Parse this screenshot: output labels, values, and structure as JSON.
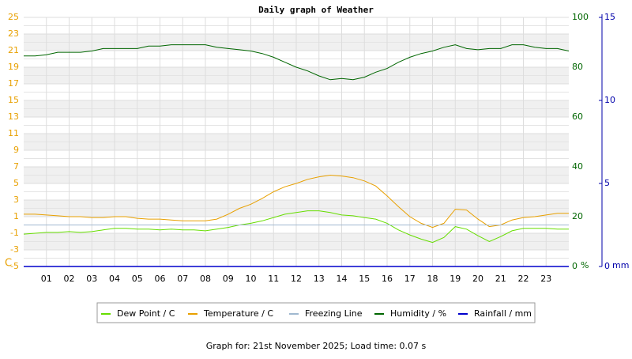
{
  "chart_data": {
    "type": "line",
    "title": "Daily graph of Weather",
    "footer": "Graph for: 21st November 2025; Load time: 0.07 s",
    "y_unit": "C",
    "y2_unit": "%",
    "y3_unit": "mm",
    "x": [
      0,
      0.5,
      1,
      1.5,
      2,
      2.5,
      3,
      3.5,
      4,
      4.5,
      5,
      5.5,
      6,
      6.5,
      7,
      7.5,
      8,
      8.5,
      9,
      9.5,
      10,
      10.5,
      11,
      11.5,
      12,
      12.5,
      13,
      13.5,
      14,
      14.5,
      15,
      15.5,
      16,
      16.5,
      17,
      17.5,
      18,
      18.5,
      19,
      19.5,
      20,
      20.5,
      21,
      21.5,
      22,
      22.5,
      23,
      23.5,
      24
    ],
    "xlim": [
      0,
      24
    ],
    "xticks": [
      {
        "value": 1,
        "label": "01"
      },
      {
        "value": 2,
        "label": "02"
      },
      {
        "value": 3,
        "label": "03"
      },
      {
        "value": 4,
        "label": "04"
      },
      {
        "value": 5,
        "label": "05"
      },
      {
        "value": 6,
        "label": "06"
      },
      {
        "value": 7,
        "label": "07"
      },
      {
        "value": 8,
        "label": "08"
      },
      {
        "value": 9,
        "label": "09"
      },
      10,
      11,
      12,
      13,
      14,
      15,
      16,
      17,
      18,
      19,
      20,
      21,
      22,
      23
    ],
    "ylim": [
      -5,
      25
    ],
    "yticks": [
      -5,
      -3,
      -1,
      1,
      3,
      5,
      7,
      9,
      11,
      13,
      15,
      17,
      19,
      21,
      23,
      25
    ],
    "y2lim": [
      0,
      100
    ],
    "y2ticks": [
      0,
      20,
      40,
      60,
      80,
      100
    ],
    "y3lim": [
      0,
      15
    ],
    "y3ticks": [
      0,
      5,
      10,
      15
    ],
    "grid": true,
    "series": [
      {
        "name": "Dew Point / C",
        "color": "#66dd00",
        "values": [
          -1.1,
          -1.0,
          -0.9,
          -0.9,
          -0.8,
          -0.9,
          -0.8,
          -0.6,
          -0.4,
          -0.4,
          -0.5,
          -0.5,
          -0.6,
          -0.5,
          -0.6,
          -0.6,
          -0.7,
          -0.5,
          -0.3,
          0.0,
          0.2,
          0.5,
          0.9,
          1.3,
          1.5,
          1.7,
          1.7,
          1.5,
          1.2,
          1.1,
          0.9,
          0.7,
          0.2,
          -0.6,
          -1.2,
          -1.7,
          -2.1,
          -1.5,
          -0.2,
          -0.5,
          -1.3,
          -2.0,
          -1.4,
          -0.7,
          -0.4,
          -0.4,
          -0.4,
          -0.5,
          -0.5
        ]
      },
      {
        "name": "Temperature / C",
        "color": "#e8a000",
        "values": [
          1.3,
          1.3,
          1.2,
          1.1,
          1.0,
          1.0,
          0.9,
          0.9,
          1.0,
          1.0,
          0.8,
          0.7,
          0.7,
          0.6,
          0.5,
          0.5,
          0.5,
          0.7,
          1.3,
          2.0,
          2.5,
          3.2,
          4.0,
          4.6,
          5.0,
          5.5,
          5.8,
          6.0,
          5.9,
          5.7,
          5.3,
          4.7,
          3.5,
          2.2,
          1.0,
          0.2,
          -0.3,
          0.2,
          1.9,
          1.8,
          0.7,
          -0.2,
          0.0,
          0.6,
          0.9,
          1.0,
          1.2,
          1.4,
          1.4
        ]
      },
      {
        "name": "Freezing Line",
        "color": "#a0b8d0",
        "values": [
          0,
          0,
          0,
          0,
          0,
          0,
          0,
          0,
          0,
          0,
          0,
          0,
          0,
          0,
          0,
          0,
          0,
          0,
          0,
          0,
          0,
          0,
          0,
          0,
          0,
          0,
          0,
          0,
          0,
          0,
          0,
          0,
          0,
          0,
          0,
          0,
          0,
          0,
          0,
          0,
          0,
          0,
          0,
          0,
          0,
          0,
          0,
          0,
          0
        ]
      },
      {
        "name": "Humidity / %",
        "color": "#006600",
        "axis": "y2",
        "values": [
          84.5,
          84.5,
          85,
          86,
          86,
          86,
          86.5,
          87.5,
          87.5,
          87.5,
          87.5,
          88.5,
          88.5,
          89,
          89,
          89,
          89,
          88,
          87.5,
          87,
          86.5,
          85.5,
          84,
          82,
          80,
          78.5,
          76.5,
          75,
          75.5,
          75,
          76,
          78,
          79.5,
          82,
          84,
          85.5,
          86.5,
          88,
          89,
          87.5,
          87,
          87.5,
          87.5,
          89,
          89,
          88,
          87.5,
          87.5,
          86.5
        ]
      },
      {
        "name": "Rainfall / mm",
        "color": "#0000cc",
        "axis": "y3",
        "values": [
          0,
          0,
          0,
          0,
          0,
          0,
          0,
          0,
          0,
          0,
          0,
          0,
          0,
          0,
          0,
          0,
          0,
          0,
          0,
          0,
          0,
          0,
          0,
          0,
          0,
          0,
          0,
          0,
          0,
          0,
          0,
          0,
          0,
          0,
          0,
          0,
          0,
          0,
          0,
          0,
          0,
          0,
          0,
          0,
          0,
          0,
          0,
          0,
          0
        ]
      }
    ]
  }
}
